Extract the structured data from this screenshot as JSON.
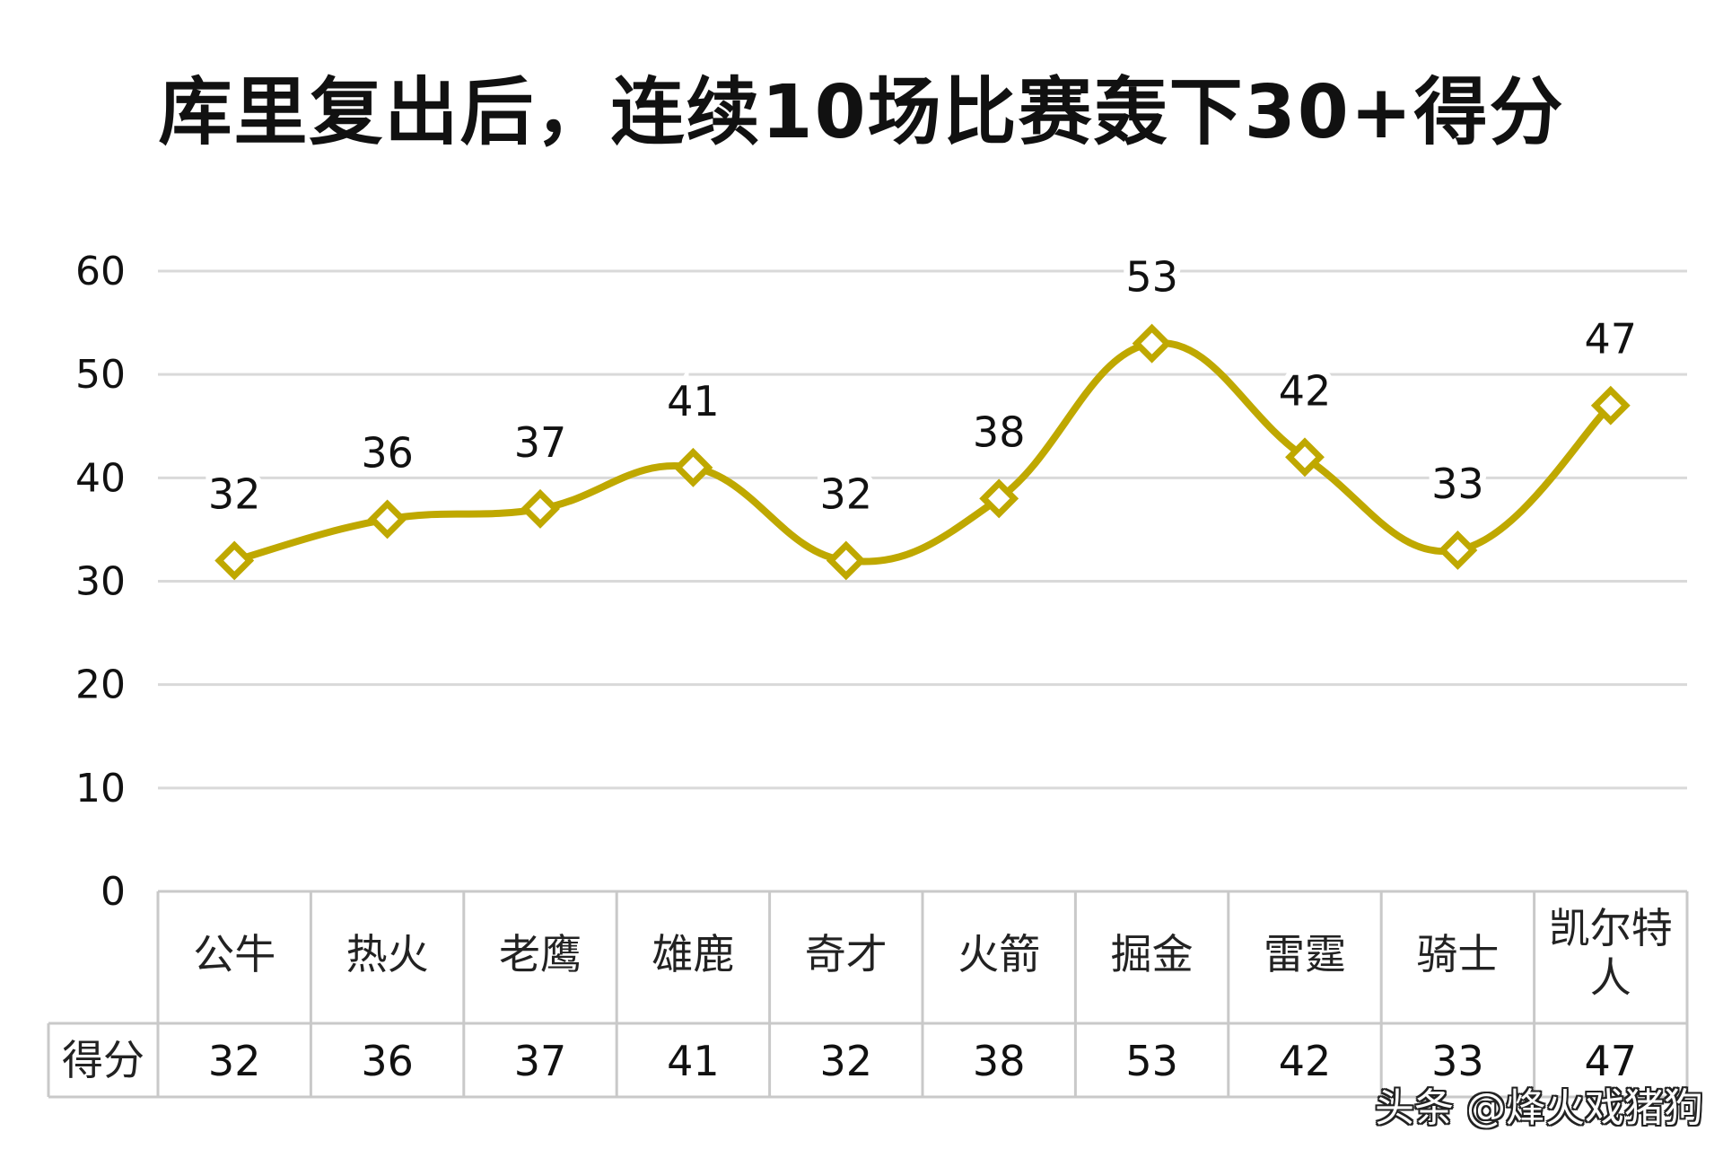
{
  "chart_data": {
    "type": "line",
    "title": "库里复出后，连续10场比赛轰下30+得分",
    "categories": [
      "公牛",
      "热火",
      "老鹰",
      "雄鹿",
      "奇才",
      "火箭",
      "掘金",
      "雷霆",
      "骑士",
      "凯尔特人"
    ],
    "series": [
      {
        "name": "得分",
        "values": [
          32,
          36,
          37,
          41,
          32,
          38,
          53,
          42,
          33,
          47
        ],
        "color": "#BFA800"
      }
    ],
    "yticks": [
      "0",
      "10",
      "20",
      "30",
      "40",
      "50",
      "60"
    ],
    "ylim": [
      0,
      60
    ],
    "grid": true,
    "data_table": true,
    "data_labels": true,
    "marker": "diamond"
  },
  "watermark": "头条 @烽火戏猪狗"
}
